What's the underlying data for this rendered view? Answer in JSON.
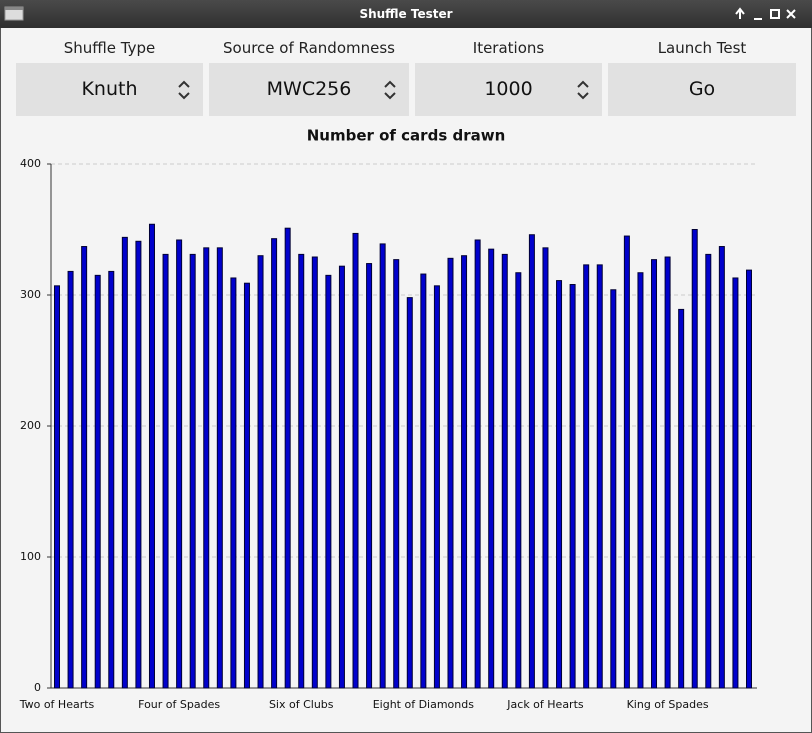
{
  "window": {
    "title": "Shuffle Tester"
  },
  "controls": [
    {
      "label": "Shuffle Type",
      "value": "Knuth"
    },
    {
      "label": "Source of Randomness",
      "value": "MWC256"
    },
    {
      "label": "Iterations",
      "value": "1000"
    },
    {
      "label": "Launch Test",
      "value": "Go"
    }
  ],
  "chart_data": {
    "type": "bar",
    "title": "Number of cards drawn",
    "categories": [
      "Two of Hearts",
      null,
      null,
      null,
      null,
      null,
      null,
      null,
      null,
      "Four of Spades",
      null,
      null,
      null,
      null,
      null,
      null,
      null,
      null,
      "Six of Clubs",
      null,
      null,
      null,
      null,
      null,
      null,
      null,
      null,
      "Eight of Diamonds",
      null,
      null,
      null,
      null,
      null,
      null,
      null,
      null,
      "Jack of Hearts",
      null,
      null,
      null,
      null,
      null,
      null,
      null,
      null,
      "King of Spades",
      null,
      null,
      null,
      null,
      null,
      null
    ],
    "values": [
      307,
      318,
      337,
      315,
      318,
      344,
      341,
      354,
      331,
      342,
      331,
      336,
      336,
      313,
      309,
      330,
      343,
      351,
      331,
      329,
      315,
      322,
      347,
      324,
      339,
      327,
      298,
      316,
      307,
      328,
      330,
      342,
      335,
      331,
      317,
      346,
      336,
      311,
      308,
      323,
      323,
      304,
      345,
      317,
      327,
      329,
      289,
      350,
      331,
      337,
      313,
      319
    ],
    "color": "#0000cc",
    "ylim": [
      0,
      400
    ],
    "yticks": [
      0,
      100,
      200,
      300,
      400
    ],
    "grid": true
  }
}
